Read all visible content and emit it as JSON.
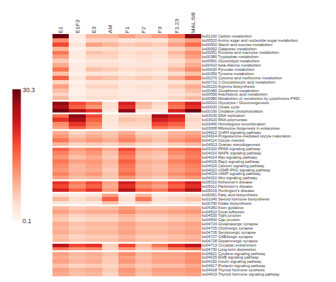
{
  "chart_data": {
    "type": "heatmap",
    "x": [
      "E1",
      "E1F3",
      "E3",
      "AM",
      "F1",
      "F2",
      "F3",
      "F1.23",
      "MAL.6/8"
    ],
    "y": [
      "ko01200 Carbon metabolism",
      "ko00520 Amino sugar and nucleotide sugar metabolism",
      "ko00500 Starch and sucrose metabolism",
      "ko00052 Galactose metabolism",
      "ko00051 Fructose and mannose metabolism",
      "ko00380 Tryptophan metabolism",
      "ko00561 Glycerolipid metabolism",
      "ko00410 beta-Alanine metabolism",
      "ko00630 Pyruvate metabolism",
      "ko00350 Tyrosine metabolism",
      "ko00270 Cysteine and methionine metabolism",
      "ko00710 2-Oxocarboxylic acid metabolism",
      "ko00220 Arginine biosynthesis",
      "ko00480 Glutathione metabolism",
      "ko00590 Arachidonic acid metabolism",
      "ko00980 Metabolism of xenobiotics by cytochrome P450",
      "ko00010 Glycolysis / Gluconeogenesis",
      "ko00020 Citrate cycle",
      "ko00190 Oxidative phosphorylation",
      "ko03030 DNA replication",
      "ko03020 RNA polymerase",
      "ko03440 Homologous recombination",
      "ko03008 Ribosome biogenesis in eukaryotes",
      "ko04912 GnRH signaling pathway",
      "ko04914 Progesterone-mediated oocyte maturation",
      "ko04114 Oocyte meiosis",
      "ko04913 Ovarian steroidogenesis",
      "ko03320 PPAR signaling pathway",
      "ko04010 MAPK signaling pathway",
      "ko04014 Ras signaling pathway",
      "ko04015 Rap1 signaling pathway",
      "ko04020 Calcium signaling pathway",
      "ko04022 cGMP-PKG signaling pathway",
      "ko04024 cAMP signaling pathway",
      "ko04310 Wnt signaling pathway",
      "ko05010 Alzheimer's disease",
      "ko05012 Parkinson's disease",
      "ko05016 Huntington's disease",
      "ko00061 Fatty acid biosynthesis",
      "ko01040 Steroid hormone biosynthesis",
      "ko00790 Folate biosynthesis",
      "ko04360 Axon guidance",
      "ko04510 Focal adhesion",
      "ko04530 Tight junction",
      "ko04540 Gap junction",
      "ko04724 Glutamatergic synapse",
      "ko04725 Cholinergic synapse",
      "ko04726 Serotonergic synapse",
      "ko04727 GABAergic synapse",
      "ko04728 Dopaminergic synapse",
      "ko04713 Circadian entrainment",
      "ko04730 Long-term depression",
      "ko04621 Cytokine signaling pathway",
      "ko04015 ErbB signaling pathway",
      "ko04150 Insulin signaling pathway",
      "ko04917 Prolactin signaling pathway",
      "ko04918 Thyroid hormone synthesis",
      "ko04919 Thyroid hormone signaling pathway"
    ],
    "values": [
      [
        30,
        2,
        8,
        8,
        10,
        8,
        10,
        14,
        28
      ],
      [
        12,
        1,
        5,
        5,
        3,
        4,
        3,
        7,
        10
      ],
      [
        18,
        3,
        10,
        8,
        6,
        7,
        6,
        10,
        15
      ],
      [
        8,
        1,
        4,
        4,
        3,
        3,
        3,
        5,
        8
      ],
      [
        14,
        2,
        7,
        6,
        4,
        5,
        4,
        8,
        12
      ],
      [
        10,
        2,
        5,
        5,
        3,
        4,
        3,
        6,
        10
      ],
      [
        6,
        1,
        3,
        3,
        2,
        3,
        2,
        4,
        7
      ],
      [
        9,
        2,
        4,
        4,
        3,
        3,
        3,
        5,
        9
      ],
      [
        14,
        2,
        7,
        6,
        4,
        5,
        4,
        8,
        12
      ],
      [
        7,
        1,
        3,
        3,
        2,
        3,
        2,
        4,
        7
      ],
      [
        16,
        3,
        8,
        7,
        5,
        6,
        5,
        9,
        14
      ],
      [
        5,
        1,
        3,
        3,
        2,
        2,
        2,
        3,
        5
      ],
      [
        10,
        2,
        5,
        5,
        3,
        4,
        3,
        6,
        9
      ],
      [
        7,
        1,
        3,
        3,
        2,
        3,
        2,
        4,
        7
      ],
      [
        5,
        1,
        3,
        3,
        2,
        2,
        2,
        3,
        5
      ],
      [
        8,
        2,
        4,
        4,
        3,
        3,
        3,
        5,
        8
      ],
      [
        28,
        18,
        14,
        4,
        22,
        8,
        5,
        16,
        22
      ],
      [
        26,
        16,
        11,
        4,
        20,
        7,
        4,
        14,
        20
      ],
      [
        30,
        25,
        20,
        2,
        28,
        3,
        2,
        22,
        30
      ],
      [
        15,
        28,
        18,
        3,
        5,
        5,
        26,
        22,
        4
      ],
      [
        20,
        26,
        16,
        3,
        7,
        6,
        22,
        20,
        5
      ],
      [
        12,
        20,
        13,
        3,
        5,
        5,
        18,
        16,
        4
      ],
      [
        10,
        16,
        11,
        2,
        4,
        4,
        14,
        12,
        3
      ],
      [
        9,
        5,
        7,
        6,
        9,
        5,
        5,
        8,
        9
      ],
      [
        11,
        7,
        9,
        7,
        11,
        7,
        6,
        9,
        11
      ],
      [
        14,
        9,
        11,
        9,
        13,
        9,
        7,
        11,
        13
      ],
      [
        8,
        5,
        6,
        5,
        7,
        5,
        4,
        6,
        8
      ],
      [
        16,
        11,
        13,
        9,
        18,
        10,
        9,
        14,
        16
      ],
      [
        13,
        9,
        11,
        7,
        15,
        8,
        7,
        12,
        14
      ],
      [
        11,
        7,
        9,
        6,
        13,
        7,
        6,
        10,
        13
      ],
      [
        14,
        10,
        11,
        8,
        16,
        9,
        8,
        13,
        15
      ],
      [
        12,
        8,
        10,
        7,
        14,
        8,
        7,
        11,
        13
      ],
      [
        11,
        8,
        9,
        6,
        13,
        8,
        7,
        10,
        12
      ],
      [
        13,
        9,
        11,
        7,
        15,
        9,
        8,
        12,
        14
      ],
      [
        10,
        7,
        8,
        6,
        11,
        7,
        6,
        9,
        11
      ],
      [
        20,
        14,
        18,
        10,
        22,
        14,
        12,
        18,
        22
      ],
      [
        18,
        12,
        16,
        9,
        20,
        12,
        10,
        16,
        20
      ],
      [
        22,
        16,
        20,
        11,
        25,
        16,
        14,
        20,
        25
      ],
      [
        4,
        2,
        3,
        10,
        2,
        8,
        2,
        3,
        4
      ],
      [
        8,
        4,
        6,
        16,
        4,
        14,
        4,
        5,
        7
      ],
      [
        3,
        2,
        2,
        7,
        2,
        5,
        2,
        2,
        3
      ],
      [
        8,
        6,
        7,
        7,
        10,
        7,
        7,
        8,
        9
      ],
      [
        10,
        8,
        9,
        9,
        12,
        9,
        9,
        10,
        11
      ],
      [
        7,
        5,
        6,
        6,
        8,
        6,
        6,
        7,
        8
      ],
      [
        6,
        4,
        5,
        5,
        7,
        5,
        5,
        6,
        7
      ],
      [
        9,
        7,
        8,
        8,
        10,
        8,
        8,
        9,
        10
      ],
      [
        8,
        6,
        7,
        7,
        9,
        7,
        7,
        8,
        9
      ],
      [
        9,
        7,
        8,
        8,
        10,
        8,
        8,
        9,
        10
      ],
      [
        7,
        5,
        6,
        6,
        8,
        6,
        6,
        7,
        8
      ],
      [
        8,
        6,
        7,
        7,
        9,
        7,
        7,
        8,
        9
      ],
      [
        24,
        18,
        20,
        6,
        18,
        8,
        14,
        20,
        24
      ],
      [
        14,
        11,
        12,
        5,
        11,
        6,
        9,
        13,
        15
      ],
      [
        10,
        8,
        9,
        7,
        12,
        8,
        10,
        10,
        12
      ],
      [
        9,
        7,
        8,
        6,
        10,
        7,
        9,
        9,
        11
      ],
      [
        10,
        8,
        9,
        6,
        11,
        8,
        10,
        10,
        12
      ],
      [
        7,
        5,
        6,
        5,
        8,
        6,
        7,
        7,
        9
      ],
      [
        10,
        8,
        9,
        6,
        11,
        8,
        10,
        10,
        11
      ],
      [
        9,
        7,
        8,
        5,
        10,
        7,
        9,
        9,
        10
      ]
    ],
    "color": "Reds",
    "colorbar": {
      "range": [
        0.1,
        30.3
      ],
      "ticks": [
        0.1,
        30.3
      ]
    },
    "group_sizes": [
      16,
      3,
      4,
      4,
      8,
      3,
      3,
      9,
      2,
      6
    ]
  }
}
